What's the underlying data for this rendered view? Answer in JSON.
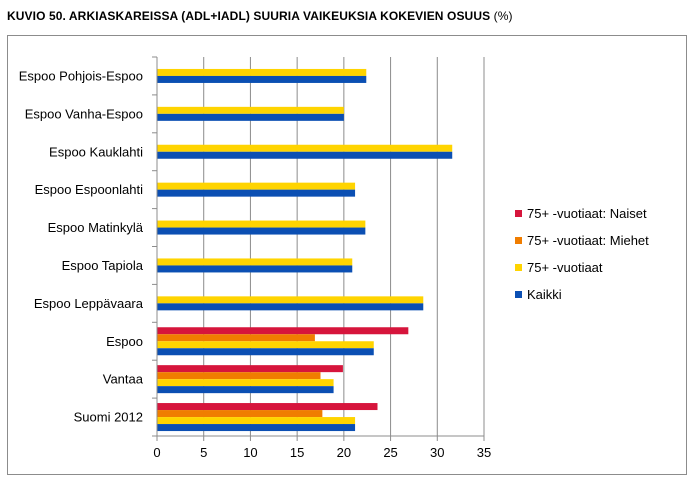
{
  "title": {
    "main": "KUVIO 50. ARKIASKAREISSA (ADL+IADL) SUURIA VAIKEUKSIA KOKEVIEN OSUUS",
    "unit": "(%)"
  },
  "colors": {
    "naiset": "#d6153c",
    "miehet": "#f07d00",
    "vuotiaat": "#ffd400",
    "kaikki": "#0b4fb3",
    "grid": "#8c8c8c",
    "frame": "#8c8c8c"
  },
  "chart_data": {
    "type": "bar",
    "orientation": "horizontal",
    "title": "KUVIO 50. ARKIASKAREISSA (ADL+IADL) SUURIA VAIKEUKSIA KOKEVIEN OSUUS (%)",
    "xlabel": "",
    "ylabel": "",
    "xlim": [
      0,
      35
    ],
    "xticks": [
      "0",
      "5",
      "10",
      "15",
      "20",
      "25",
      "30",
      "35"
    ],
    "grid": true,
    "legend_position": "right",
    "categories": [
      "Espoo Pohjois-Espoo",
      "Espoo Vanha-Espoo",
      "Espoo Kauklahti",
      "Espoo Espoonlahti",
      "Espoo Matinkylä",
      "Espoo Tapiola",
      "Espoo Leppävaara",
      "Espoo",
      "Vantaa",
      "Suomi 2012"
    ],
    "series": [
      {
        "name": "75+ -vuotiaat: Naiset",
        "color": "#d6153c",
        "values": [
          null,
          null,
          null,
          null,
          null,
          null,
          null,
          26.9,
          19.9,
          23.6
        ]
      },
      {
        "name": "75+ -vuotiaat: Miehet",
        "color": "#f07d00",
        "values": [
          null,
          null,
          null,
          null,
          null,
          null,
          null,
          16.9,
          17.5,
          17.7
        ]
      },
      {
        "name": "75+ -vuotiaat",
        "color": "#ffd400",
        "values": [
          22.4,
          20.0,
          31.6,
          21.2,
          22.3,
          20.9,
          28.5,
          23.2,
          18.9,
          21.2
        ]
      },
      {
        "name": "Kaikki",
        "color": "#0b4fb3",
        "values": [
          22.4,
          20.0,
          31.6,
          21.2,
          22.3,
          20.9,
          28.5,
          23.2,
          18.9,
          21.2
        ]
      }
    ]
  }
}
